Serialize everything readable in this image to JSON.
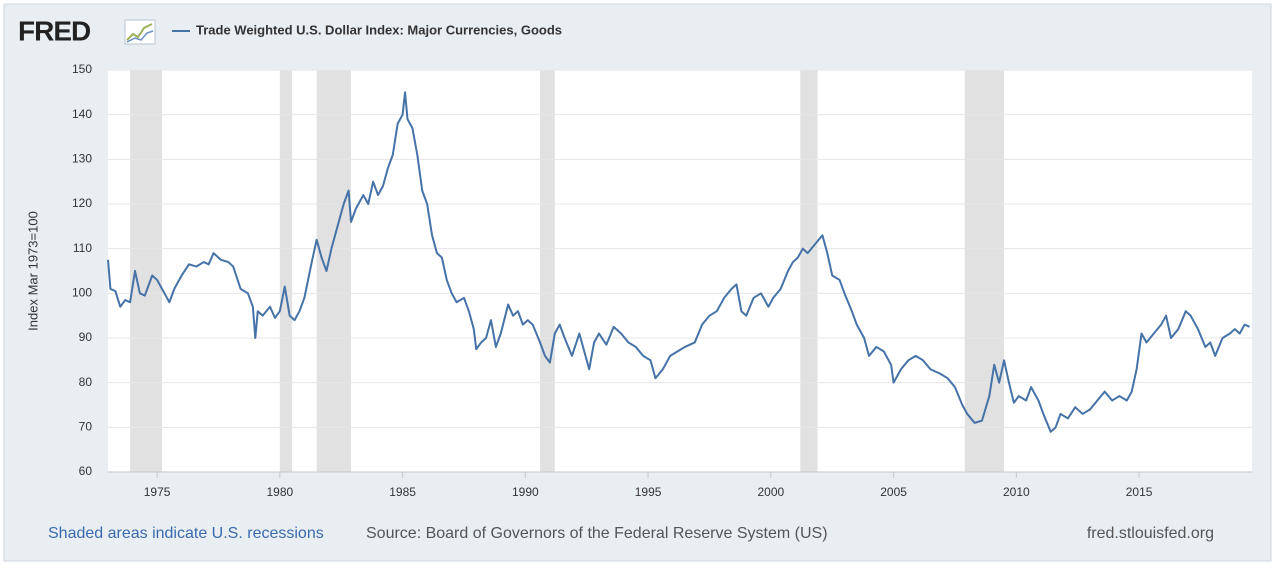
{
  "logo": "FRED",
  "chart_data": {
    "type": "line",
    "ylabel": "Index Mar 1973=100",
    "xlim": [
      1973.0,
      2019.6
    ],
    "ylim": [
      60,
      150
    ],
    "xticks": [
      1975,
      1980,
      1985,
      1990,
      1995,
      2000,
      2005,
      2010,
      2015
    ],
    "yticks": [
      60,
      70,
      80,
      90,
      100,
      110,
      120,
      130,
      140,
      150
    ],
    "grid": true,
    "recessions": [
      [
        1973.9,
        1975.2
      ],
      [
        1980.0,
        1980.5
      ],
      [
        1981.5,
        1982.9
      ],
      [
        1990.6,
        1991.2
      ],
      [
        2001.2,
        2001.9
      ],
      [
        2007.9,
        2009.5
      ]
    ],
    "recession_color": "#e1e1e1",
    "x": [
      1973.0,
      1973.1,
      1973.3,
      1973.5,
      1973.7,
      1973.9,
      1974.1,
      1974.3,
      1974.5,
      1974.8,
      1975.0,
      1975.3,
      1975.5,
      1975.7,
      1976.0,
      1976.3,
      1976.6,
      1976.9,
      1977.1,
      1977.3,
      1977.6,
      1977.9,
      1978.1,
      1978.4,
      1978.7,
      1978.9,
      1979.0,
      1979.1,
      1979.3,
      1979.6,
      1979.8,
      1980.0,
      1980.2,
      1980.4,
      1980.6,
      1980.8,
      1981.0,
      1981.3,
      1981.5,
      1981.7,
      1981.9,
      1982.1,
      1982.3,
      1982.6,
      1982.8,
      1982.9,
      1983.1,
      1983.4,
      1983.6,
      1983.8,
      1984.0,
      1984.2,
      1984.4,
      1984.6,
      1984.8,
      1985.0,
      1985.1,
      1985.2,
      1985.4,
      1985.6,
      1985.8,
      1986.0,
      1986.2,
      1986.4,
      1986.6,
      1986.8,
      1987.0,
      1987.2,
      1987.5,
      1987.7,
      1987.9,
      1988.0,
      1988.2,
      1988.4,
      1988.6,
      1988.8,
      1989.0,
      1989.3,
      1989.5,
      1989.7,
      1989.9,
      1990.1,
      1990.3,
      1990.6,
      1990.8,
      1991.0,
      1991.2,
      1991.4,
      1991.6,
      1991.9,
      1992.2,
      1992.4,
      1992.6,
      1992.8,
      1993.0,
      1993.3,
      1993.6,
      1993.9,
      1994.2,
      1994.5,
      1994.8,
      1995.1,
      1995.3,
      1995.6,
      1995.9,
      1996.2,
      1996.5,
      1996.9,
      1997.2,
      1997.5,
      1997.8,
      1998.1,
      1998.4,
      1998.6,
      1998.8,
      1999.0,
      1999.3,
      1999.6,
      1999.9,
      2000.1,
      2000.4,
      2000.7,
      2000.9,
      2001.1,
      2001.3,
      2001.5,
      2001.8,
      2002.1,
      2002.3,
      2002.5,
      2002.8,
      2003.0,
      2003.3,
      2003.5,
      2003.8,
      2004.0,
      2004.3,
      2004.6,
      2004.9,
      2005.0,
      2005.3,
      2005.6,
      2005.9,
      2006.2,
      2006.5,
      2006.9,
      2007.2,
      2007.5,
      2007.8,
      2008.0,
      2008.3,
      2008.6,
      2008.9,
      2009.1,
      2009.3,
      2009.5,
      2009.7,
      2009.9,
      2010.1,
      2010.4,
      2010.6,
      2010.9,
      2011.1,
      2011.4,
      2011.6,
      2011.8,
      2012.1,
      2012.4,
      2012.7,
      2013.0,
      2013.3,
      2013.6,
      2013.9,
      2014.2,
      2014.5,
      2014.7,
      2014.9,
      2015.1,
      2015.3,
      2015.6,
      2015.9,
      2016.1,
      2016.3,
      2016.6,
      2016.9,
      2017.1,
      2017.4,
      2017.7,
      2017.9,
      2018.1,
      2018.4,
      2018.7,
      2018.9,
      2019.1,
      2019.3,
      2019.5
    ],
    "series": [
      {
        "name": "Trade Weighted U.S. Dollar Index: Major Currencies, Goods",
        "color": "#4572a7",
        "values": [
          107.5,
          101,
          100.5,
          97,
          98.5,
          98,
          105,
          100,
          99.5,
          104,
          103,
          100,
          98,
          101,
          104,
          106.5,
          106,
          107,
          106.5,
          109,
          107.5,
          107,
          106,
          101,
          100,
          97,
          90,
          96,
          95,
          97,
          94.5,
          96,
          101.5,
          95,
          94,
          96,
          99,
          107,
          112,
          108,
          105,
          110,
          114,
          120,
          123,
          116,
          119,
          122,
          120,
          125,
          122,
          124,
          128,
          131,
          138,
          140,
          145,
          139,
          137,
          131,
          123,
          120,
          113,
          109,
          108,
          103,
          100,
          98,
          99,
          96,
          92,
          87.5,
          89,
          90,
          94,
          88,
          91,
          97.5,
          95,
          96,
          93,
          94,
          93,
          89,
          86,
          84.5,
          91,
          93,
          90,
          86,
          91,
          87,
          83,
          89,
          91,
          88.5,
          92.5,
          91,
          89,
          88,
          86,
          85,
          81,
          83,
          86,
          87,
          88,
          89,
          93,
          95,
          96,
          99,
          101,
          102,
          96,
          95,
          99,
          100,
          97,
          99,
          101,
          105,
          107,
          108,
          110,
          109,
          111,
          113,
          109,
          104,
          103,
          100,
          96,
          93,
          90,
          86,
          88,
          87,
          84,
          80,
          83,
          85,
          86,
          85,
          83,
          82,
          81,
          79,
          75,
          73,
          71,
          71.5,
          77,
          84,
          80,
          85,
          80,
          75.5,
          77,
          76,
          79,
          76,
          73,
          69,
          70,
          73,
          72,
          74.5,
          73,
          74,
          76,
          78,
          76,
          77,
          76,
          78,
          83,
          91,
          89,
          91,
          93,
          95,
          90,
          92,
          96,
          95,
          92,
          88,
          89,
          86,
          90,
          91,
          92,
          91,
          93,
          92.5
        ]
      }
    ]
  },
  "footer": {
    "recession_note": "Shaded areas indicate U.S. recessions",
    "source": "Source: Board of Governors of the Federal Reserve System (US)",
    "site": "fred.stlouisfed.org"
  }
}
